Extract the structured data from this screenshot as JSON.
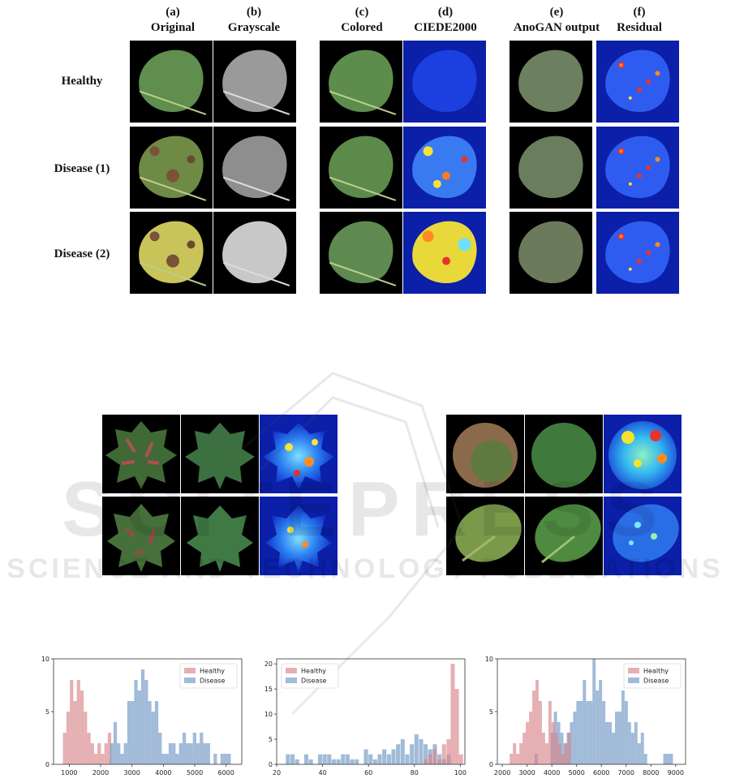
{
  "figure_top": {
    "columns": [
      {
        "letter": "(a)",
        "name": "Original"
      },
      {
        "letter": "(b)",
        "name": "Grayscale"
      },
      {
        "letter": "(c)",
        "name": "Colored"
      },
      {
        "letter": "(d)",
        "name": "CIEDE2000"
      },
      {
        "letter": "(e)",
        "name": "AnoGAN output"
      },
      {
        "letter": "(f)",
        "name": "Residual"
      }
    ],
    "rows": [
      "Healthy",
      "Disease (1)",
      "Disease (2)"
    ]
  },
  "watermark": {
    "line1": "SCITEPRESS",
    "line2": "SCIENCE AND TECHNOLOGY PUBLICATIONS"
  },
  "colors": {
    "healthy": "#d9868a",
    "disease": "#6f96c4",
    "heat_bg": "#0b1fa8",
    "leaf": "#5f8a48"
  },
  "chart_data": [
    {
      "type": "bar",
      "legend": [
        "Healthy",
        "Disease"
      ],
      "legend_position": "top-right",
      "xlim": [
        500,
        6500
      ],
      "ylim": [
        0,
        10
      ],
      "xticks": [
        1000,
        2000,
        3000,
        4000,
        5000,
        6000
      ],
      "yticks": [
        0,
        5,
        10
      ],
      "bin_width": 110,
      "series": [
        {
          "name": "Healthy",
          "bins": [
            [
              800,
              3
            ],
            [
              910,
              5
            ],
            [
              1020,
              8
            ],
            [
              1130,
              6
            ],
            [
              1240,
              8
            ],
            [
              1350,
              7
            ],
            [
              1460,
              5
            ],
            [
              1570,
              3
            ],
            [
              1680,
              2
            ],
            [
              1790,
              1
            ],
            [
              1900,
              2
            ],
            [
              2010,
              1
            ],
            [
              2120,
              2
            ],
            [
              2230,
              3
            ]
          ]
        },
        {
          "name": "Disease",
          "bins": [
            [
              2300,
              2
            ],
            [
              2410,
              4
            ],
            [
              2520,
              2
            ],
            [
              2630,
              1
            ],
            [
              2740,
              2
            ],
            [
              2850,
              6
            ],
            [
              2960,
              6
            ],
            [
              3070,
              8
            ],
            [
              3180,
              7
            ],
            [
              3290,
              9
            ],
            [
              3400,
              8
            ],
            [
              3510,
              6
            ],
            [
              3620,
              5
            ],
            [
              3730,
              6
            ],
            [
              3840,
              3
            ],
            [
              3950,
              1
            ],
            [
              4060,
              1
            ],
            [
              4170,
              2
            ],
            [
              4280,
              2
            ],
            [
              4390,
              1
            ],
            [
              4500,
              2
            ],
            [
              4610,
              3
            ],
            [
              4720,
              2
            ],
            [
              4830,
              2
            ],
            [
              4940,
              3
            ],
            [
              5050,
              2
            ],
            [
              5160,
              3
            ],
            [
              5270,
              2
            ],
            [
              5380,
              2
            ],
            [
              5600,
              1
            ],
            [
              5820,
              1
            ],
            [
              5930,
              1
            ],
            [
              6040,
              1
            ]
          ]
        }
      ]
    },
    {
      "type": "bar",
      "legend": [
        "Healthy",
        "Disease"
      ],
      "legend_position": "top-left",
      "xlim": [
        20,
        102
      ],
      "ylim": [
        0,
        21
      ],
      "xticks": [
        20,
        40,
        60,
        80,
        100
      ],
      "yticks": [
        0,
        5,
        10,
        15,
        20
      ],
      "bin_width": 1.8,
      "series": [
        {
          "name": "Disease",
          "bins": [
            [
              24,
              2
            ],
            [
              26,
              2
            ],
            [
              28,
              1
            ],
            [
              32,
              2
            ],
            [
              34,
              1
            ],
            [
              38,
              2
            ],
            [
              40,
              2
            ],
            [
              42,
              2
            ],
            [
              44,
              1
            ],
            [
              46,
              1
            ],
            [
              48,
              2
            ],
            [
              50,
              2
            ],
            [
              52,
              1
            ],
            [
              54,
              1
            ],
            [
              58,
              3
            ],
            [
              60,
              2
            ],
            [
              62,
              1
            ],
            [
              64,
              2
            ],
            [
              66,
              3
            ],
            [
              68,
              2
            ],
            [
              70,
              3
            ],
            [
              72,
              4
            ],
            [
              74,
              5
            ],
            [
              76,
              2
            ],
            [
              78,
              4
            ],
            [
              80,
              6
            ],
            [
              82,
              5
            ],
            [
              84,
              4
            ],
            [
              86,
              3
            ],
            [
              88,
              4
            ],
            [
              90,
              2
            ],
            [
              92,
              1
            ],
            [
              94,
              2
            ]
          ]
        },
        {
          "name": "Healthy",
          "bins": [
            [
              84,
              1
            ],
            [
              86,
              2
            ],
            [
              88,
              3
            ],
            [
              90,
              1
            ],
            [
              92,
              4
            ],
            [
              94,
              5
            ],
            [
              95.8,
              20
            ],
            [
              97.6,
              15
            ],
            [
              99.4,
              2
            ]
          ]
        }
      ]
    },
    {
      "type": "bar",
      "legend": [
        "Healthy",
        "Disease"
      ],
      "legend_position": "top-right",
      "xlim": [
        1800,
        9400
      ],
      "ylim": [
        0,
        10
      ],
      "xticks": [
        2000,
        3000,
        4000,
        5000,
        6000,
        7000,
        8000,
        9000
      ],
      "yticks": [
        0,
        5,
        10
      ],
      "bin_width": 130,
      "series": [
        {
          "name": "Disease",
          "bins": [
            [
              3300,
              1
            ],
            [
              3950,
              3
            ],
            [
              4080,
              5
            ],
            [
              4210,
              4
            ],
            [
              4340,
              3
            ],
            [
              4470,
              2
            ],
            [
              4600,
              3
            ],
            [
              4730,
              4
            ],
            [
              4860,
              5
            ],
            [
              4990,
              6
            ],
            [
              5120,
              6
            ],
            [
              5250,
              8
            ],
            [
              5380,
              6
            ],
            [
              5510,
              6
            ],
            [
              5640,
              10
            ],
            [
              5770,
              7
            ],
            [
              5900,
              8
            ],
            [
              6030,
              6
            ],
            [
              6160,
              4
            ],
            [
              6290,
              4
            ],
            [
              6420,
              3
            ],
            [
              6550,
              5
            ],
            [
              6680,
              5
            ],
            [
              6810,
              7
            ],
            [
              6940,
              6
            ],
            [
              7070,
              4
            ],
            [
              7200,
              3
            ],
            [
              7330,
              4
            ],
            [
              7460,
              2
            ],
            [
              7590,
              3
            ],
            [
              7720,
              1
            ],
            [
              8500,
              1
            ],
            [
              8630,
              1
            ],
            [
              8760,
              1
            ]
          ]
        },
        {
          "name": "Healthy",
          "bins": [
            [
              2300,
              1
            ],
            [
              2430,
              2
            ],
            [
              2560,
              1
            ],
            [
              2690,
              2
            ],
            [
              2820,
              3
            ],
            [
              2950,
              4
            ],
            [
              3080,
              5
            ],
            [
              3210,
              7
            ],
            [
              3340,
              8
            ],
            [
              3470,
              6
            ],
            [
              3600,
              3
            ],
            [
              3730,
              2
            ],
            [
              3860,
              6
            ],
            [
              3990,
              4
            ],
            [
              4120,
              3
            ],
            [
              4250,
              2
            ],
            [
              4380,
              1
            ],
            [
              4510,
              2
            ],
            [
              4640,
              3
            ]
          ]
        }
      ]
    }
  ]
}
